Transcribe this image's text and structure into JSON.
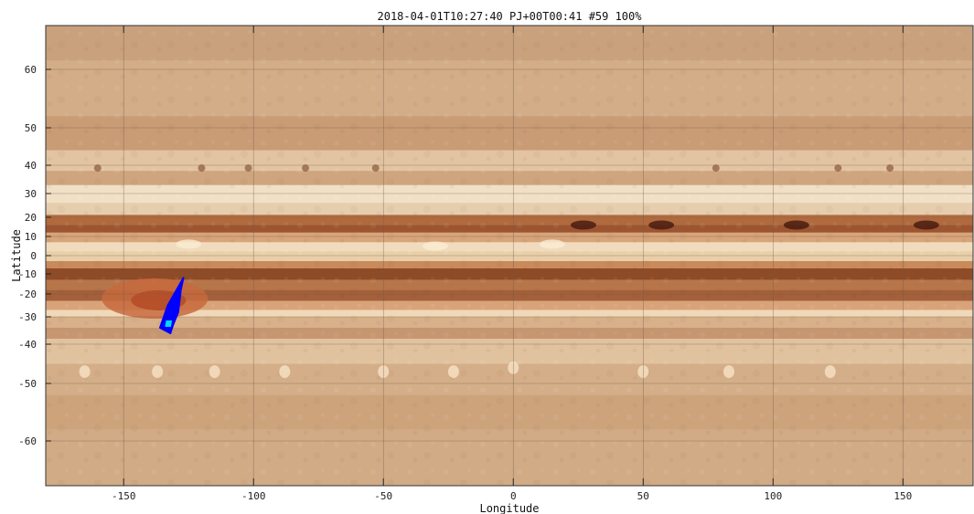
{
  "chart_data": {
    "type": "map",
    "title": "2018-04-01T10:27:40  PJ+00T00:41 #59 100%",
    "xlabel": "Longitude",
    "ylabel": "Latitude",
    "xlim": [
      -180,
      177
    ],
    "x_ticks": [
      -150,
      -100,
      -50,
      0,
      50,
      100,
      150
    ],
    "y_ticks": [
      60,
      50,
      40,
      30,
      20,
      10,
      0,
      -10,
      -20,
      -30,
      -40,
      -50,
      -60
    ],
    "grid": true,
    "background": "Jupiter cylindrical map with horizontal cloud bands",
    "footprint": {
      "color": "#0000ff",
      "fill_color": "#00d8ff",
      "polygon": [
        [
          -127,
          -12
        ],
        [
          -133,
          -25
        ],
        [
          -136,
          -34
        ],
        [
          -132,
          -36
        ],
        [
          -131,
          -33
        ],
        [
          -129,
          -28
        ],
        [
          -128,
          -18
        ]
      ],
      "inner_fill": [
        [
          -134,
          -31
        ],
        [
          -131,
          -31
        ],
        [
          -131.5,
          -34
        ],
        [
          -134.5,
          -34
        ]
      ]
    },
    "features": {
      "great_red_spot": {
        "lon": -138,
        "lat": -22,
        "color": "#c0502a"
      },
      "dark_spots": [
        [
          27,
          15
        ],
        [
          57,
          15
        ],
        [
          109,
          15
        ],
        [
          159,
          15
        ]
      ]
    }
  }
}
